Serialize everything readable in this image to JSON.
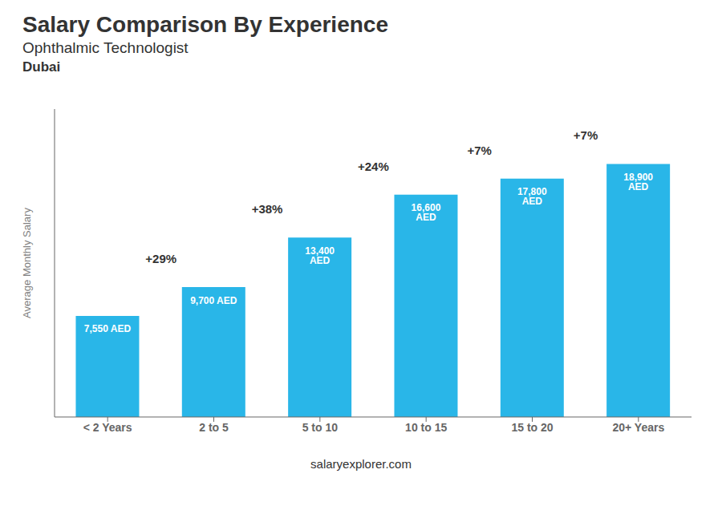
{
  "chart_data": {
    "type": "bar",
    "title": "Salary Comparison By Experience",
    "subtitle": [
      "Ophthalmic Technologist",
      "Dubai"
    ],
    "ylabel": "Average Monthly Salary",
    "categories": [
      "< 2 Years",
      "2 to 5",
      "5 to 10",
      "10 to 15",
      "15 to 20",
      "20+ Years"
    ],
    "values": [
      7550,
      9700,
      13400,
      16600,
      17800,
      18900
    ],
    "value_labels": [
      "7,550 AED",
      "9,700 AED",
      "13,400 AED",
      "16,600 AED",
      "17,800 AED",
      "18,900 AED"
    ],
    "data_labels": true,
    "color": "#29b6e8",
    "ylim": [
      0,
      23000
    ],
    "grid": false,
    "tick_labels": "x",
    "annotations": [
      {
        "text": "+29%",
        "from": "< 2 Years",
        "to": "2 to 5"
      },
      {
        "text": "+38%",
        "from": "2 to 5",
        "to": "5 to 10"
      },
      {
        "text": "+24%",
        "from": "5 to 10",
        "to": "10 to 15"
      },
      {
        "text": "+7%",
        "from": "10 to 15",
        "to": "15 to 20"
      },
      {
        "text": "+7%",
        "from": "15 to 20",
        "to": "20+ Years"
      },
      {
        "text": "salaryexplorer.com"
      }
    ]
  }
}
